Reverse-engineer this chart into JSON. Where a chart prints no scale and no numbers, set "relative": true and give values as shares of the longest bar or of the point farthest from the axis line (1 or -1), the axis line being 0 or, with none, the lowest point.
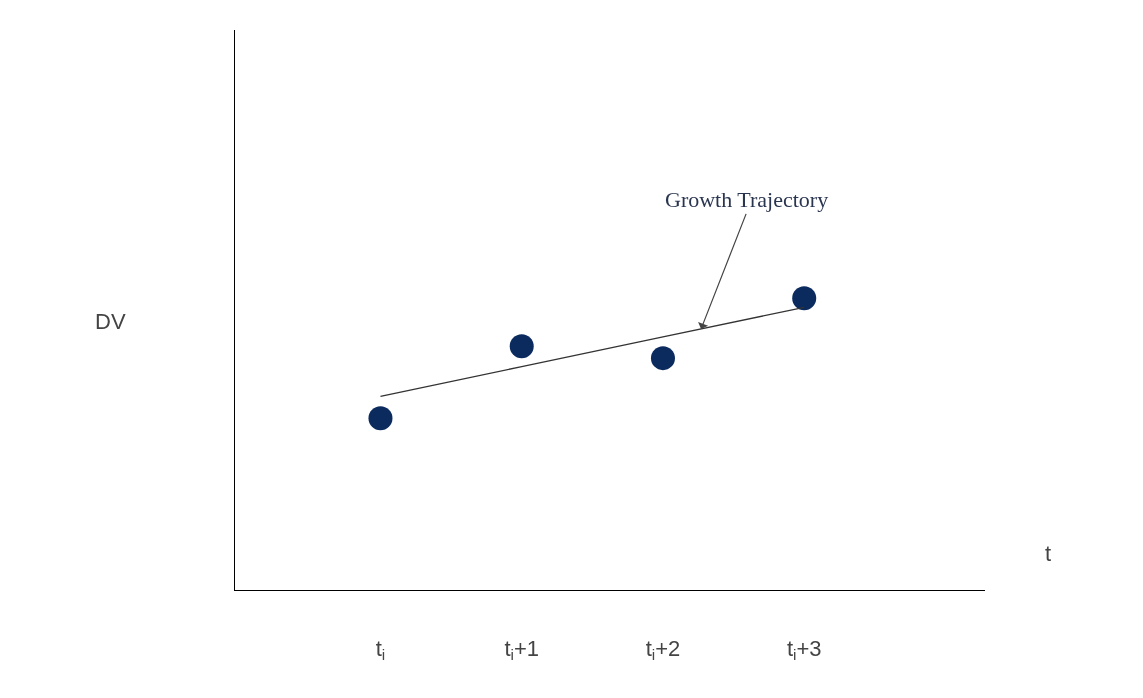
{
  "chart_data": {
    "type": "scatter",
    "relative": true,
    "xlabel": "t",
    "ylabel": "DV",
    "categories": [
      "t$_{i}$",
      "t$_{i}$+1",
      "t$_{i}$+2",
      "t$_{i}$+3"
    ],
    "series": [
      {
        "type": "scatter",
        "color": "#0b2a5e",
        "marker": "circle",
        "values": [
          0.589,
          0.836,
          0.795,
          1
        ]
      },
      {
        "type": "line",
        "color": "#333333",
        "line_style": "solid",
        "values": [
          0.664,
          0.766,
          0.868,
          0.969
        ]
      }
    ],
    "annotations": [
      "Growth Trajectory"
    ],
    "grid": false
  }
}
